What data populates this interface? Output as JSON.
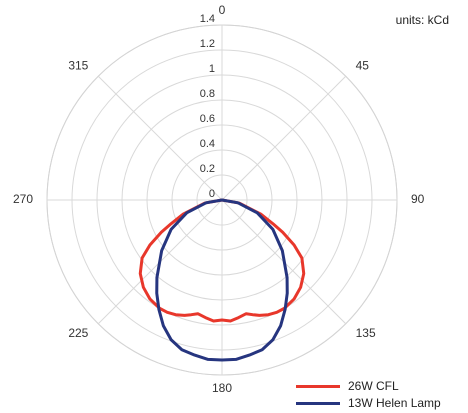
{
  "chart_data": {
    "type": "polar-line",
    "units_label": "units: kCd",
    "angle_unit": "degrees",
    "angle_zero": "top",
    "angle_direction": "clockwise",
    "angle_ticks": [
      0,
      45,
      90,
      135,
      180,
      225,
      270,
      315
    ],
    "radial_ticks": [
      "0",
      "0.2",
      "0.4",
      "0.6",
      "0.8",
      "1",
      "1.2",
      "1.4"
    ],
    "r_range": [
      0,
      1.4
    ],
    "grid": true,
    "legend_position": "bottom-right",
    "series": [
      {
        "name": "26W CFL",
        "color": "#e8372b",
        "points": [
          [
            90,
            0.0
          ],
          [
            100,
            0.14
          ],
          [
            110,
            0.33
          ],
          [
            115,
            0.45
          ],
          [
            118,
            0.55
          ],
          [
            122,
            0.68
          ],
          [
            126,
            0.79
          ],
          [
            132,
            0.88
          ],
          [
            138,
            0.94
          ],
          [
            144,
            0.98
          ],
          [
            150,
            1.0
          ],
          [
            154,
            1.0
          ],
          [
            158,
            0.99
          ],
          [
            162,
            0.97
          ],
          [
            165,
            0.95
          ],
          [
            168,
            0.93
          ],
          [
            172,
            0.95
          ],
          [
            176,
            0.97
          ],
          [
            180,
            0.96
          ],
          [
            184,
            0.97
          ],
          [
            188,
            0.95
          ],
          [
            192,
            0.93
          ],
          [
            195,
            0.95
          ],
          [
            198,
            0.97
          ],
          [
            202,
            0.99
          ],
          [
            206,
            1.0
          ],
          [
            210,
            1.0
          ],
          [
            216,
            0.98
          ],
          [
            222,
            0.94
          ],
          [
            228,
            0.88
          ],
          [
            234,
            0.79
          ],
          [
            238,
            0.68
          ],
          [
            242,
            0.55
          ],
          [
            245,
            0.45
          ],
          [
            250,
            0.33
          ],
          [
            260,
            0.14
          ],
          [
            270,
            0.0
          ]
        ]
      },
      {
        "name": "13W Helen Lamp",
        "color": "#26357f",
        "points": [
          [
            90,
            0.0
          ],
          [
            100,
            0.13
          ],
          [
            110,
            0.3
          ],
          [
            120,
            0.47
          ],
          [
            130,
            0.63
          ],
          [
            140,
            0.81
          ],
          [
            145,
            0.91
          ],
          [
            150,
            1.01
          ],
          [
            155,
            1.11
          ],
          [
            160,
            1.19
          ],
          [
            165,
            1.24
          ],
          [
            170,
            1.26
          ],
          [
            175,
            1.28
          ],
          [
            180,
            1.28
          ],
          [
            185,
            1.28
          ],
          [
            190,
            1.26
          ],
          [
            195,
            1.24
          ],
          [
            200,
            1.19
          ],
          [
            205,
            1.11
          ],
          [
            210,
            1.01
          ],
          [
            215,
            0.91
          ],
          [
            220,
            0.81
          ],
          [
            230,
            0.63
          ],
          [
            240,
            0.47
          ],
          [
            250,
            0.3
          ],
          [
            260,
            0.13
          ],
          [
            270,
            0.0
          ]
        ]
      }
    ]
  }
}
